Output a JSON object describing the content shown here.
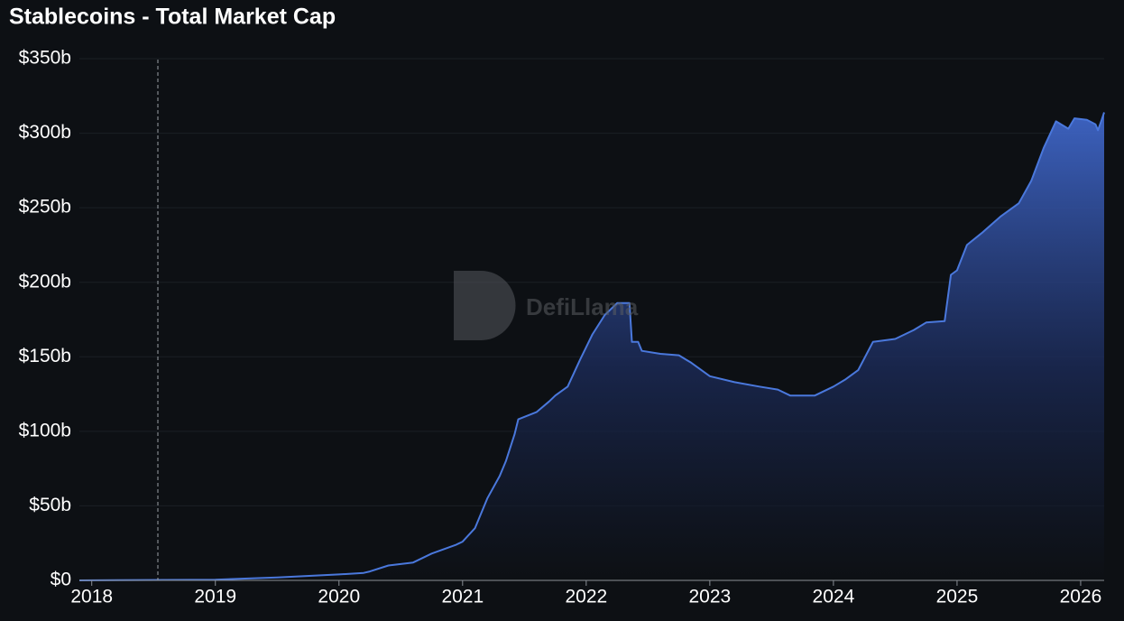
{
  "chart_data": {
    "type": "area",
    "title": "Stablecoins - Total Market Cap",
    "watermark": "DefiLlama",
    "x": [
      2017.9,
      2019.0,
      2019.5,
      2020.0,
      2020.2,
      2020.25,
      2020.4,
      2020.6,
      2020.75,
      2020.95,
      2021.0,
      2021.1,
      2021.2,
      2021.3,
      2021.35,
      2021.42,
      2021.45,
      2021.6,
      2021.7,
      2021.75,
      2021.85,
      2021.95,
      2022.05,
      2022.15,
      2022.25,
      2022.35,
      2022.37,
      2022.42,
      2022.45,
      2022.6,
      2022.75,
      2022.85,
      2023.0,
      2023.2,
      2023.4,
      2023.55,
      2023.65,
      2023.85,
      2024.0,
      2024.1,
      2024.2,
      2024.32,
      2024.5,
      2024.65,
      2024.75,
      2024.9,
      2024.95,
      2025.0,
      2025.08,
      2025.2,
      2025.35,
      2025.5,
      2025.6,
      2025.7,
      2025.8,
      2025.9,
      2025.95,
      2026.05,
      2026.12,
      2026.14,
      2026.17,
      2026.19
    ],
    "values": [
      0,
      0.5,
      2,
      4,
      5,
      6,
      10,
      12,
      18,
      24,
      26,
      35,
      55,
      70,
      80,
      98,
      108,
      113,
      120,
      124,
      130,
      148,
      165,
      178,
      186,
      186,
      160,
      160,
      154,
      152,
      151,
      146,
      137,
      133,
      130,
      128,
      124,
      124,
      130,
      135,
      141,
      160,
      162,
      168,
      173,
      174,
      205,
      208,
      225,
      233,
      244,
      253,
      268,
      290,
      308,
      303,
      310,
      309,
      306,
      302,
      309,
      314
    ],
    "color": "#4a78dc",
    "xlim": [
      2017.9,
      2026.19
    ],
    "xticks": [
      2018,
      2019,
      2020,
      2021,
      2022,
      2023,
      2024,
      2025,
      2026
    ],
    "ylim": [
      0,
      350
    ],
    "yticks": [
      {
        "value": 0,
        "label": "$0"
      },
      {
        "value": 50,
        "label": "$50b"
      },
      {
        "value": 100,
        "label": "$100b"
      },
      {
        "value": 150,
        "label": "$150b"
      },
      {
        "value": 200,
        "label": "$200b"
      },
      {
        "value": 250,
        "label": "$250b"
      },
      {
        "value": 300,
        "label": "$300b"
      },
      {
        "value": 350,
        "label": "$350b"
      }
    ],
    "grid": true
  }
}
